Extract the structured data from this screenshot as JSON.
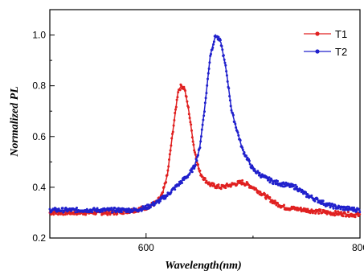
{
  "chart_data": {
    "type": "line",
    "xlabel": "Wavelength(nm)",
    "ylabel": "Normalized PL",
    "xlim": [
      510,
      800
    ],
    "ylim": [
      0.2,
      1.1
    ],
    "x_ticks": [
      600,
      800
    ],
    "y_ticks": [
      0.2,
      0.4,
      0.6,
      0.8,
      1.0
    ],
    "x_tick_labels": [
      "600",
      "800"
    ],
    "y_tick_labels": [
      "0.2",
      "0.4",
      "0.6",
      "0.8",
      "1.0"
    ],
    "grid": false,
    "legend_position": "top-right",
    "series": [
      {
        "name": "T1",
        "color": "#e02020",
        "marker": "circle",
        "x": [
          510,
          540,
          570,
          590,
          600,
          610,
          615,
          620,
          625,
          630,
          633,
          636,
          640,
          645,
          650,
          655,
          660,
          665,
          670,
          680,
          690,
          700,
          710,
          720,
          730,
          750,
          770,
          800
        ],
        "y": [
          0.3,
          0.3,
          0.3,
          0.31,
          0.32,
          0.34,
          0.37,
          0.45,
          0.62,
          0.78,
          0.8,
          0.79,
          0.7,
          0.55,
          0.46,
          0.43,
          0.41,
          0.405,
          0.4,
          0.41,
          0.42,
          0.4,
          0.37,
          0.34,
          0.32,
          0.31,
          0.3,
          0.29
        ]
      },
      {
        "name": "T2",
        "color": "#2020cc",
        "marker": "circle",
        "x": [
          510,
          540,
          570,
          590,
          600,
          610,
          620,
          630,
          640,
          645,
          650,
          655,
          660,
          665,
          670,
          675,
          680,
          690,
          700,
          710,
          720,
          730,
          740,
          750,
          760,
          770,
          780,
          790,
          800
        ],
        "y": [
          0.31,
          0.31,
          0.31,
          0.31,
          0.32,
          0.34,
          0.37,
          0.41,
          0.45,
          0.48,
          0.55,
          0.72,
          0.92,
          1.0,
          0.97,
          0.86,
          0.7,
          0.55,
          0.47,
          0.44,
          0.42,
          0.41,
          0.4,
          0.37,
          0.35,
          0.33,
          0.32,
          0.315,
          0.31
        ]
      }
    ]
  }
}
